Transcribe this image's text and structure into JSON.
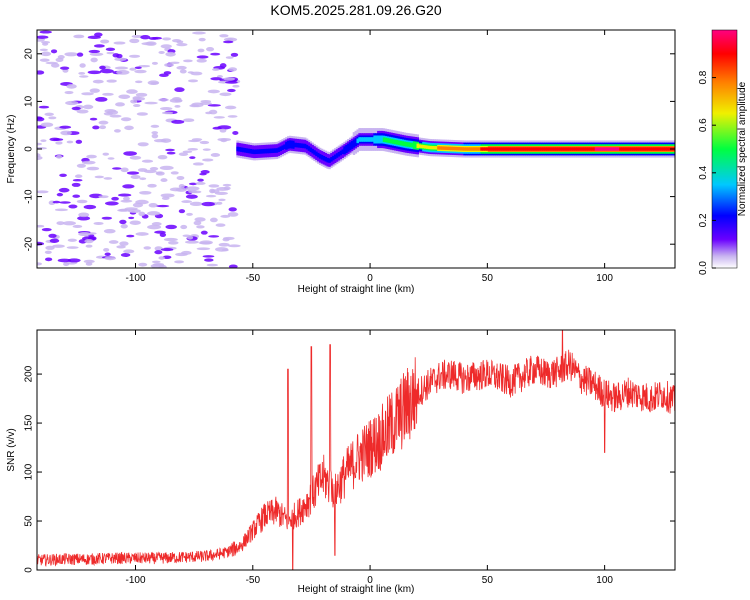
{
  "figure": {
    "title": "KOM5.2025.281.09.26.G20"
  },
  "colors": {
    "snr_line": "#ee2a2a",
    "axis": "#000000",
    "rainbow": [
      "#ffffff",
      "#c8b4f0",
      "#6a00ff",
      "#0000ff",
      "#00c8ff",
      "#00ff40",
      "#f0f000",
      "#ff8000",
      "#ff0000",
      "#ff0080"
    ]
  },
  "chart_data": [
    {
      "type": "heatmap",
      "name": "spectrogram",
      "xlabel": "Height of straight line (km)",
      "ylabel": "Frequency (Hz)",
      "xlim": [
        -142,
        130
      ],
      "ylim": [
        -25,
        25
      ],
      "xticks": [
        -100,
        -50,
        0,
        50,
        100
      ],
      "yticks": [
        -20,
        -10,
        0,
        10,
        20
      ],
      "colorbar": {
        "label": "Normalized spectral amplitude",
        "range": [
          0,
          1
        ],
        "ticks": [
          "0.0",
          "0.2",
          "0.4",
          "0.6",
          "0.8"
        ]
      },
      "signal_track": [
        {
          "x": -57,
          "f": 0.0,
          "amp": 0.3
        },
        {
          "x": -50,
          "f": -0.6,
          "amp": 0.3
        },
        {
          "x": -40,
          "f": -0.3,
          "amp": 0.32
        },
        {
          "x": -35,
          "f": 1.0,
          "amp": 0.33
        },
        {
          "x": -28,
          "f": 0.6,
          "amp": 0.32
        },
        {
          "x": -22,
          "f": -1.5,
          "amp": 0.3
        },
        {
          "x": -18,
          "f": -2.5,
          "amp": 0.3
        },
        {
          "x": -12,
          "f": -0.5,
          "amp": 0.32
        },
        {
          "x": -5,
          "f": 2.0,
          "amp": 0.4
        },
        {
          "x": 5,
          "f": 2.0,
          "amp": 0.5
        },
        {
          "x": 15,
          "f": 1.0,
          "amp": 0.55
        },
        {
          "x": 25,
          "f": 0.3,
          "amp": 0.7
        },
        {
          "x": 40,
          "f": 0.0,
          "amp": 0.8
        },
        {
          "x": 60,
          "f": 0.0,
          "amp": 0.9
        },
        {
          "x": 100,
          "f": 0.0,
          "amp": 0.95
        },
        {
          "x": 130,
          "f": 0.0,
          "amp": 0.92
        }
      ],
      "noise_region": {
        "x": [
          -142,
          -57
        ],
        "f": [
          -25,
          25
        ],
        "amp_max": 0.2
      }
    },
    {
      "type": "line",
      "name": "snr",
      "xlabel": "Height of straight line (km)",
      "ylabel": "SNR (v/v)",
      "xlim": [
        -142,
        130
      ],
      "ylim": [
        0,
        245
      ],
      "xticks": [
        -100,
        -50,
        0,
        50,
        100
      ],
      "yticks": [
        0,
        50,
        100,
        150,
        200
      ],
      "series": [
        {
          "name": "SNR",
          "x": [
            -142,
            -130,
            -120,
            -110,
            -100,
            -90,
            -80,
            -70,
            -65,
            -60,
            -55,
            -50,
            -45,
            -40,
            -35,
            -30,
            -25,
            -20,
            -15,
            -10,
            -5,
            0,
            5,
            10,
            15,
            20,
            25,
            30,
            35,
            40,
            45,
            50,
            55,
            60,
            65,
            70,
            75,
            80,
            85,
            90,
            95,
            100,
            105,
            110,
            115,
            120,
            125,
            130
          ],
          "y": [
            10,
            11,
            11,
            12,
            12,
            12,
            13,
            14,
            16,
            19,
            25,
            40,
            55,
            60,
            50,
            60,
            75,
            95,
            80,
            100,
            115,
            125,
            135,
            150,
            165,
            180,
            190,
            198,
            200,
            195,
            198,
            200,
            196,
            192,
            198,
            205,
            200,
            202,
            210,
            195,
            190,
            180,
            175,
            182,
            178,
            175,
            180,
            172
          ]
        }
      ],
      "spikes": [
        {
          "x": -35,
          "y": 205
        },
        {
          "x": -25,
          "y": 228
        },
        {
          "x": -17,
          "y": 230
        },
        {
          "x": 82,
          "y": 245
        }
      ],
      "dips": [
        {
          "x": -33,
          "y": 0
        },
        {
          "x": -15,
          "y": 15
        },
        {
          "x": 100,
          "y": 120
        }
      ]
    }
  ]
}
